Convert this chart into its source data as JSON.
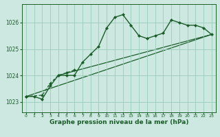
{
  "title": "Graphe pression niveau de la mer (hPa)",
  "background_color": "#cce8e0",
  "grid_color": "#99ccbb",
  "line_color": "#1a5c28",
  "xlim": [
    -0.5,
    23.5
  ],
  "ylim": [
    1022.6,
    1026.7
  ],
  "yticks": [
    1023,
    1024,
    1025,
    1026
  ],
  "xticks": [
    0,
    1,
    2,
    3,
    4,
    5,
    6,
    7,
    8,
    9,
    10,
    11,
    12,
    13,
    14,
    15,
    16,
    17,
    18,
    19,
    20,
    21,
    22,
    23
  ],
  "series_main": {
    "x": [
      0,
      1,
      2,
      3,
      4,
      5,
      6,
      7,
      8,
      9,
      10,
      11,
      12,
      13,
      14,
      15,
      16,
      17,
      18,
      19,
      20,
      21,
      22,
      23
    ],
    "y": [
      1023.2,
      1023.2,
      1023.1,
      1023.6,
      1024.0,
      1024.0,
      1024.0,
      1024.5,
      1024.8,
      1025.1,
      1025.8,
      1026.2,
      1026.3,
      1025.9,
      1025.5,
      1025.4,
      1025.5,
      1025.6,
      1026.1,
      1026.0,
      1025.9,
      1025.9,
      1025.8,
      1025.55
    ]
  },
  "series_dashed": {
    "x": [
      0,
      2,
      3,
      4,
      5,
      6
    ],
    "y": [
      1023.2,
      1023.25,
      1023.7,
      1024.0,
      1024.1,
      1024.2
    ]
  },
  "line1": {
    "x": [
      0,
      23
    ],
    "y": [
      1023.2,
      1025.55
    ]
  },
  "line2": {
    "x": [
      4,
      23
    ],
    "y": [
      1024.0,
      1025.55
    ]
  },
  "ylabel_fontsize": 6,
  "xlabel_fontsize": 5,
  "title_fontsize": 6.5
}
